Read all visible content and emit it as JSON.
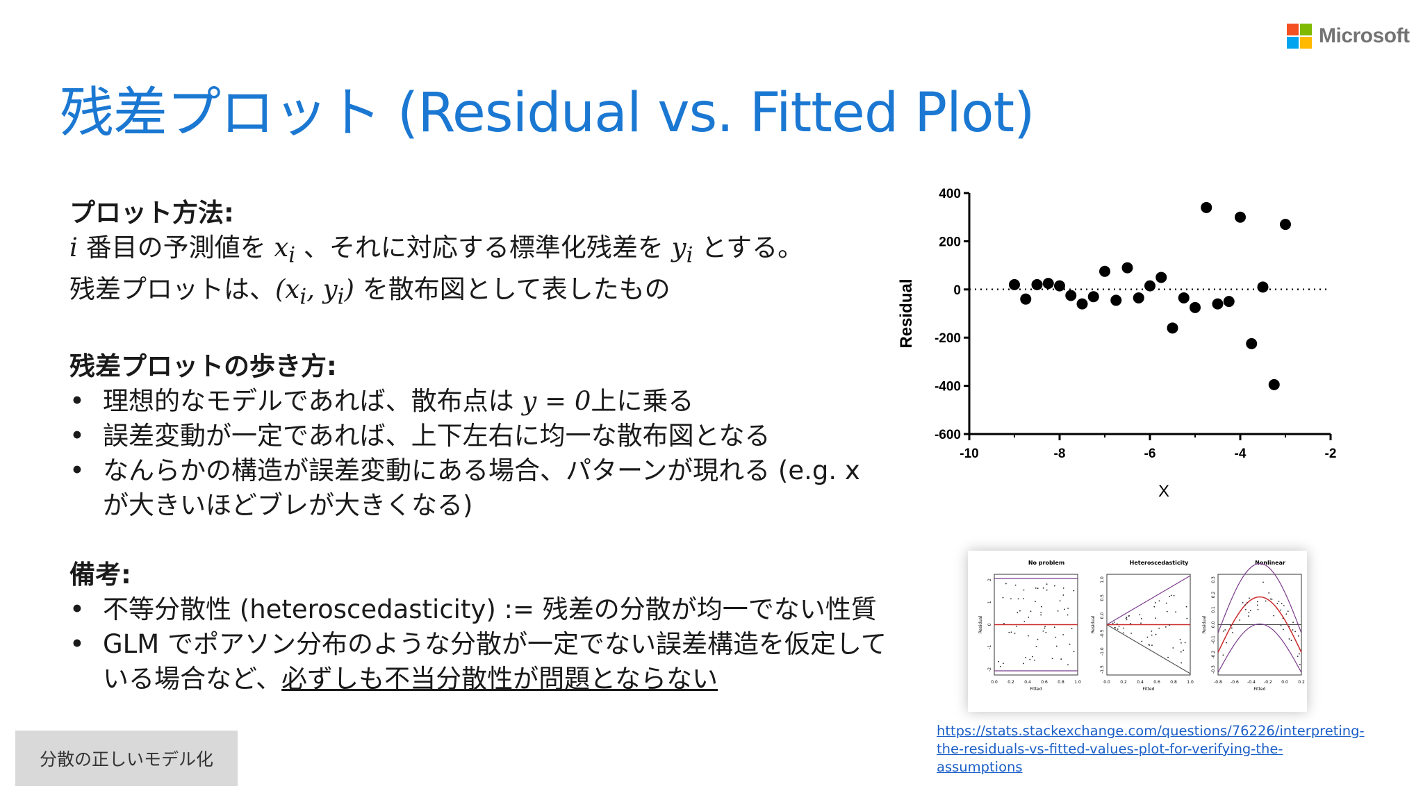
{
  "brand": {
    "name": "Microsoft",
    "logo_colors": [
      "#f25022",
      "#7fba00",
      "#00a4ef",
      "#ffb900"
    ]
  },
  "slide": {
    "title": "残差プロット (Residual vs. Fitted Plot)",
    "plot_method": {
      "heading": "プロット方法:",
      "line1_var_i": "i",
      "line1_a": " 番目の予測値を ",
      "line1_xi": "x",
      "line1_xi_sub": "i",
      "line1_b": " 、それに対応する標準化残差を ",
      "line1_yi": "y",
      "line1_yi_sub": "i",
      "line1_c": " とする。",
      "line2_a": "残差プロットは、",
      "line2_math_open": "(x",
      "line2_math_sub1": "i",
      "line2_math_mid": ", y",
      "line2_math_sub2": "i",
      "line2_math_close": ")",
      "line2_b": " を散布図として表したもの"
    },
    "reading": {
      "heading": "残差プロットの歩き方:",
      "b1_a": "理想的なモデルであれば、散布点は ",
      "b1_math": "y = 0",
      "b1_b": "上に乗る",
      "b2": "誤差変動が一定であれば、上下左右に均一な散布図となる",
      "b3": "なんらかの構造が誤差変動にある場合、パターンが現れる (e.g. x が大きいほどブレが大きくなる)"
    },
    "notes": {
      "heading": "備考:",
      "b1": "不等分散性 (heteroscedasticity) := 残差の分散が均一でない性質",
      "b2_a": "GLM でポアソン分布のような分散が一定でない誤差構造を仮定している場合など、",
      "b2_underlined": "必ずしも不当分散性が問題とならない"
    },
    "footer_label": "分散の正しいモデル化",
    "source_link": "https://stats.stackexchange.com/questions/76226/interpreting-the-residuals-vs-fitted-values-plot-for-verifying-the-assumptions",
    "source_link_line1": "https://stats.stackexchange.com/questions/76226/interpreting-",
    "source_link_line2": "the-residuals-vs-fitted-values-plot-for-verifying-the-assumptions"
  },
  "chart_data": [
    {
      "type": "scatter",
      "xlabel": "X",
      "ylabel": "Residual",
      "xlim": [
        -10,
        -2
      ],
      "ylim": [
        -600,
        400
      ],
      "xticks": [
        -10,
        -8,
        -6,
        -4,
        -2
      ],
      "yticks": [
        400,
        200,
        0,
        -200,
        -400,
        -600
      ],
      "reference_line": {
        "y": 0,
        "style": "dotted"
      },
      "color": "#000000",
      "points": [
        {
          "x": -9.0,
          "y": 20
        },
        {
          "x": -8.75,
          "y": -40
        },
        {
          "x": -8.5,
          "y": 20
        },
        {
          "x": -8.25,
          "y": 25
        },
        {
          "x": -8.0,
          "y": 15
        },
        {
          "x": -7.75,
          "y": -25
        },
        {
          "x": -7.5,
          "y": -60
        },
        {
          "x": -7.25,
          "y": -30
        },
        {
          "x": -7.0,
          "y": 75
        },
        {
          "x": -6.75,
          "y": -45
        },
        {
          "x": -6.5,
          "y": 90
        },
        {
          "x": -6.25,
          "y": -35
        },
        {
          "x": -6.0,
          "y": 15
        },
        {
          "x": -5.75,
          "y": 50
        },
        {
          "x": -5.5,
          "y": -160
        },
        {
          "x": -5.25,
          "y": -35
        },
        {
          "x": -5.0,
          "y": -75
        },
        {
          "x": -4.75,
          "y": 340
        },
        {
          "x": -4.5,
          "y": -60
        },
        {
          "x": -4.25,
          "y": -50
        },
        {
          "x": -4.0,
          "y": 300
        },
        {
          "x": -3.75,
          "y": -225
        },
        {
          "x": -3.5,
          "y": 10
        },
        {
          "x": -3.25,
          "y": -395
        },
        {
          "x": -3.0,
          "y": 270
        }
      ]
    },
    {
      "type": "scatter",
      "title": "No problem",
      "xlabel": "Fitted",
      "ylabel": "Residual",
      "xticks": [
        "0.0",
        "0.2",
        "0.4",
        "0.6",
        "0.8",
        "1.0"
      ],
      "yticks": [
        "-2",
        "-1",
        "0",
        "1",
        "2"
      ]
    },
    {
      "type": "scatter",
      "title": "Heteroscedasticity",
      "xlabel": "Fitted",
      "ylabel": "Residual",
      "xticks": [
        "0.0",
        "0.2",
        "0.4",
        "0.6",
        "0.8",
        "1.0"
      ],
      "yticks": [
        "-1.5",
        "-1.0",
        "-0.5",
        "0.0",
        "0.5",
        "1.0"
      ]
    },
    {
      "type": "scatter",
      "title": "Nonlinear",
      "xlabel": "Fitted",
      "ylabel": "Residual",
      "xticks": [
        "-0.8",
        "-0.6",
        "-0.4",
        "-0.2",
        "0.0",
        "0.2"
      ],
      "yticks": [
        "-0.3",
        "-0.2",
        "-0.1",
        "0.0",
        "0.1",
        "0.2",
        "0.3"
      ]
    }
  ]
}
